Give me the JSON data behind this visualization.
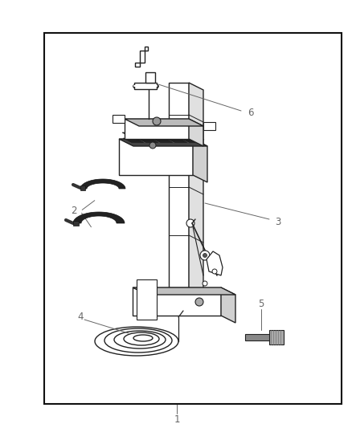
{
  "figsize": [
    4.38,
    5.33
  ],
  "dpi": 100,
  "background_color": "#ffffff",
  "border_color": "#111111",
  "border_linewidth": 1.5,
  "label_color": "#666666",
  "label_fontsize": 8.5,
  "line_color": "#222222",
  "dark_fill": "#333333",
  "light_fill": "#dddddd",
  "mid_fill": "#888888"
}
